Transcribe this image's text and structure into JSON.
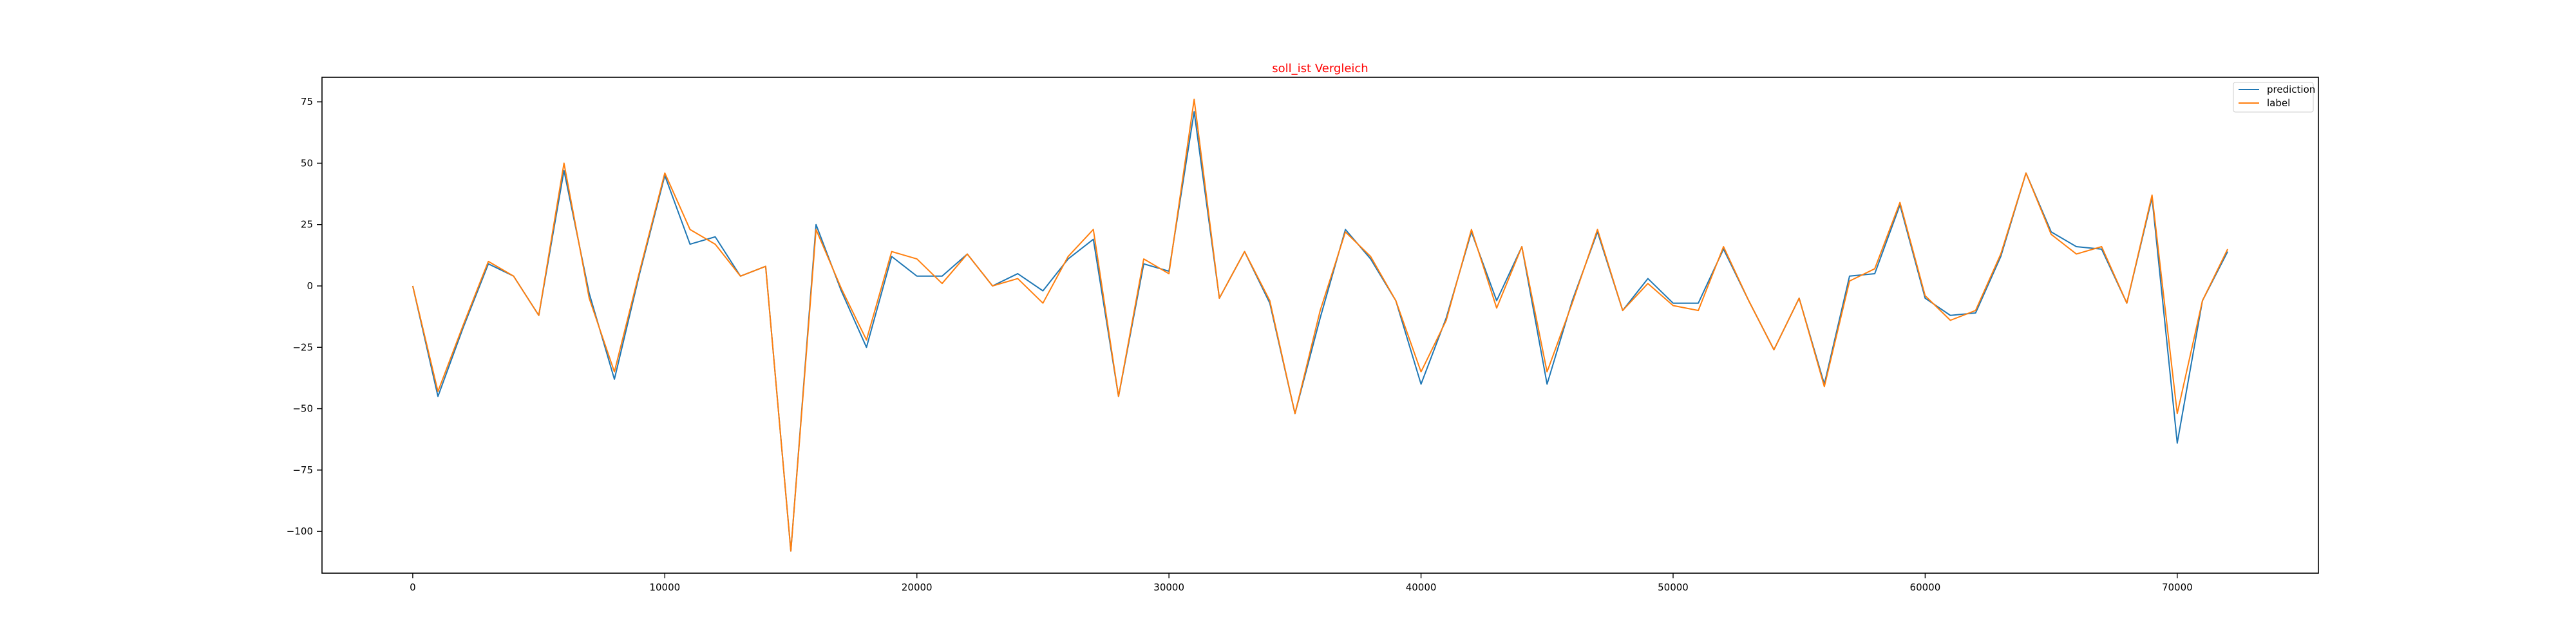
{
  "chart_data": {
    "type": "line",
    "title": "soll_ist Vergleich",
    "title_color": "#ff0000",
    "xlabel": "",
    "ylabel": "",
    "xlim": [
      -3600,
      75600
    ],
    "ylim": [
      -117,
      85
    ],
    "xticks": [
      0,
      10000,
      20000,
      30000,
      40000,
      50000,
      60000,
      70000
    ],
    "yticks": [
      75,
      50,
      25,
      0,
      -25,
      -50,
      -75,
      -100
    ],
    "grid": false,
    "legend_position": "top-right",
    "x": [
      0,
      1000,
      2000,
      3000,
      4000,
      5000,
      6000,
      7000,
      8000,
      9000,
      10000,
      11000,
      12000,
      13000,
      14000,
      15000,
      16000,
      17000,
      18000,
      19000,
      20000,
      21000,
      22000,
      23000,
      24000,
      25000,
      26000,
      27000,
      28000,
      29000,
      30000,
      31000,
      32000,
      33000,
      34000,
      35000,
      36000,
      37000,
      38000,
      39000,
      40000,
      41000,
      42000,
      43000,
      44000,
      45000,
      46000,
      47000,
      48000,
      49000,
      50000,
      51000,
      52000,
      53000,
      54000,
      55000,
      56000,
      57000,
      58000,
      59000,
      60000,
      61000,
      62000,
      63000,
      64000,
      65000,
      66000,
      67000,
      68000,
      69000,
      70000,
      71000,
      72000
    ],
    "series": [
      {
        "name": "prediction",
        "color": "#1f77b4",
        "values": [
          0,
          -45,
          -17,
          9,
          4,
          -12,
          47,
          -3,
          -38,
          5,
          45,
          17,
          20,
          4,
          8,
          -108,
          25,
          -2,
          -25,
          12,
          4,
          4,
          13,
          0,
          5,
          -2,
          11,
          19,
          -45,
          9,
          6,
          71,
          -5,
          14,
          -7,
          -52,
          -13,
          23,
          11,
          -6,
          -40,
          -13,
          22,
          -6,
          16,
          -40,
          -6,
          22,
          -10,
          3,
          -7,
          -7,
          15,
          -6,
          -26,
          -5,
          -40,
          4,
          5,
          33,
          -5,
          -12,
          -11,
          12,
          46,
          22,
          16,
          15,
          -7,
          36,
          -64,
          -6,
          14
        ]
      },
      {
        "name": "label",
        "color": "#ff7f0e",
        "values": [
          0,
          -43,
          -16,
          10,
          4,
          -12,
          50,
          -5,
          -35,
          6,
          46,
          23,
          17,
          4,
          8,
          -108,
          23,
          -1,
          -22,
          14,
          11,
          1,
          13,
          0,
          3,
          -7,
          12,
          23,
          -45,
          11,
          5,
          76,
          -5,
          14,
          -6,
          -52,
          -10,
          22,
          12,
          -6,
          -35,
          -14,
          23,
          -9,
          16,
          -35,
          -7,
          23,
          -10,
          1,
          -8,
          -10,
          16,
          -6,
          -26,
          -5,
          -41,
          2,
          7,
          34,
          -4,
          -14,
          -10,
          13,
          46,
          21,
          13,
          16,
          -7,
          37,
          -52,
          -6,
          15
        ]
      }
    ]
  }
}
